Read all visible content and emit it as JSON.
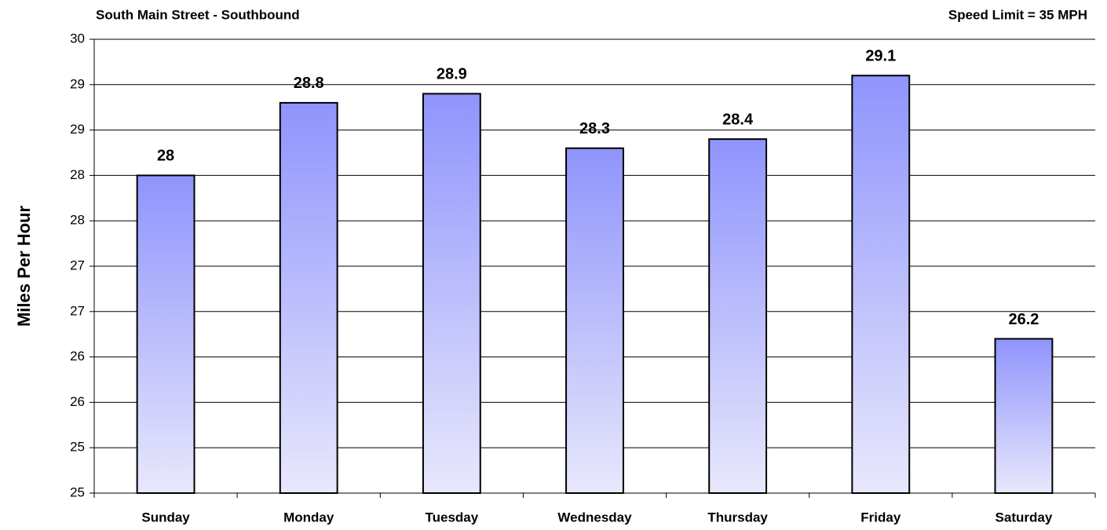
{
  "chart_data": {
    "type": "bar",
    "title": "South Main Street - Southbound",
    "subtitle": "Speed Limit = 35 MPH",
    "y_label": "Miles Per Hour",
    "categories": [
      "Sunday",
      "Monday",
      "Tuesday",
      "Wednesday",
      "Thursday",
      "Friday",
      "Saturday"
    ],
    "values": [
      28,
      28.8,
      28.9,
      28.3,
      28.4,
      29.1,
      26.2
    ],
    "color": "#8f94fc",
    "ylim": [
      24.5,
      29.5
    ],
    "yticks": [
      {
        "value": 24.5,
        "label": "25"
      },
      25,
      {
        "value": 25.5,
        "label": "26"
      },
      26,
      {
        "value": 26.5,
        "label": "27"
      },
      27,
      {
        "value": 27.5,
        "label": "28"
      },
      28,
      {
        "value": 28.5,
        "label": "29"
      },
      29,
      {
        "value": 29.5,
        "label": "30"
      }
    ],
    "grid": true
  }
}
